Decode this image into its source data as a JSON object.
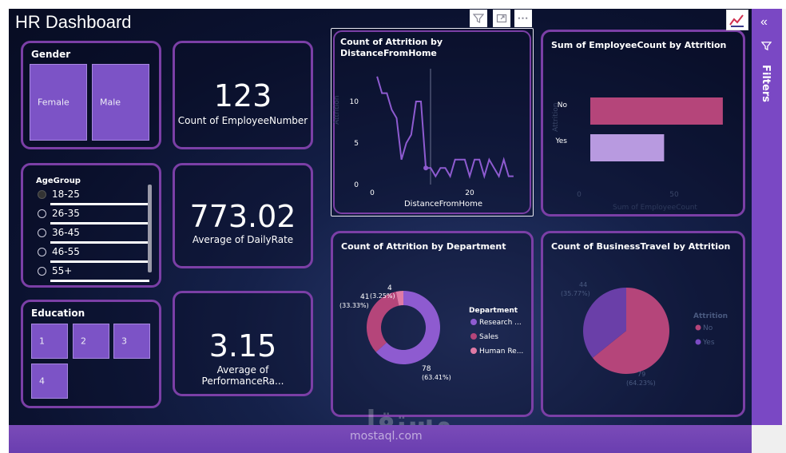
{
  "title": "HR Dashboard",
  "toolbar": {
    "filter_icon": "filter-icon",
    "focus_icon": "focus-mode-icon",
    "more_icon": "more-options-icon"
  },
  "gender": {
    "title": "Gender",
    "options": [
      "Female",
      "Male"
    ]
  },
  "kpis": [
    {
      "value": "123",
      "label": "Count of EmployeeNumber"
    },
    {
      "value": "773.02",
      "label": "Average of DailyRate"
    },
    {
      "value": "3.15",
      "label": "Average of PerformanceRa..."
    }
  ],
  "agegroup": {
    "title": "AgeGroup",
    "options": [
      "18-25",
      "26-35",
      "36-45",
      "46-55",
      "55+"
    ]
  },
  "education": {
    "title": "Education",
    "options": [
      "1",
      "2",
      "3",
      "4"
    ]
  },
  "distance_chart": {
    "title_line1": "Count of Attrition by",
    "title_line2": "DistanceFromHome",
    "xlabel": "DistanceFromHome",
    "ylabel": "Attrition",
    "yticks": [
      "10",
      "5",
      "0"
    ],
    "xticks": [
      "0",
      "20"
    ]
  },
  "employeecount_chart": {
    "title": "Sum of EmployeeCount by Attrition",
    "xlabel": "Sum of EmployeeCount",
    "ylabel": "Attrition",
    "categories": [
      "No",
      "Yes"
    ],
    "xticks": [
      "0",
      "50"
    ]
  },
  "department_chart": {
    "title": "Count of Attrition by Department",
    "legend_title": "Department",
    "legend": [
      "Research ...",
      "Sales",
      "Human Re..."
    ],
    "labels": [
      {
        "value": "78",
        "pct": "(63.41%)"
      },
      {
        "value": "41",
        "pct": "(33.33%)"
      },
      {
        "value": "4",
        "pct": "(3.25%)"
      }
    ]
  },
  "travel_chart": {
    "title": "Count of BusinessTravel by Attrition",
    "legend_title": "Attrition",
    "legend": [
      "No",
      "Yes"
    ],
    "labels": [
      {
        "value": "79",
        "pct": "(64.23%)"
      },
      {
        "value": "44",
        "pct": "(35.77%)"
      }
    ]
  },
  "filters": {
    "label": "Filters"
  },
  "watermark": {
    "arabic": "مستقل",
    "latin": "mostaql.com"
  },
  "colors": {
    "accent": "#7b3fa6",
    "tile": "#7c53c6",
    "no": "#b5457a",
    "yes": "#b89ae0",
    "research": "#8e5bd0",
    "sales": "#b5457a",
    "hr": "#e07aa5"
  },
  "chart_data": [
    {
      "type": "line",
      "title": "Count of Attrition by DistanceFromHome",
      "xlabel": "DistanceFromHome",
      "ylabel": "Attrition",
      "x": [
        1,
        2,
        3,
        4,
        5,
        6,
        7,
        8,
        9,
        10,
        11,
        12,
        13,
        14,
        15,
        16,
        17,
        18,
        19,
        20,
        21,
        22,
        23,
        24,
        25,
        26,
        27,
        28,
        29
      ],
      "y": [
        13,
        11,
        11,
        9,
        8,
        3,
        5,
        6,
        10,
        10,
        2,
        2,
        1,
        2,
        2,
        1,
        3,
        3,
        3,
        1,
        3,
        3,
        1,
        3,
        2,
        1,
        3,
        1,
        1
      ],
      "ylim": [
        0,
        13
      ],
      "xlim": [
        0,
        30
      ]
    },
    {
      "type": "bar",
      "orientation": "horizontal",
      "title": "Sum of EmployeeCount by Attrition",
      "categories": [
        "No",
        "Yes"
      ],
      "values": [
        79,
        44
      ],
      "xlim": [
        0,
        80
      ]
    },
    {
      "type": "pie",
      "donut": true,
      "title": "Count of Attrition by Department",
      "categories": [
        "Research & Development",
        "Sales",
        "Human Resources"
      ],
      "values": [
        78,
        41,
        4
      ]
    },
    {
      "type": "pie",
      "title": "Count of BusinessTravel by Attrition",
      "categories": [
        "No",
        "Yes"
      ],
      "values": [
        79,
        44
      ]
    }
  ]
}
